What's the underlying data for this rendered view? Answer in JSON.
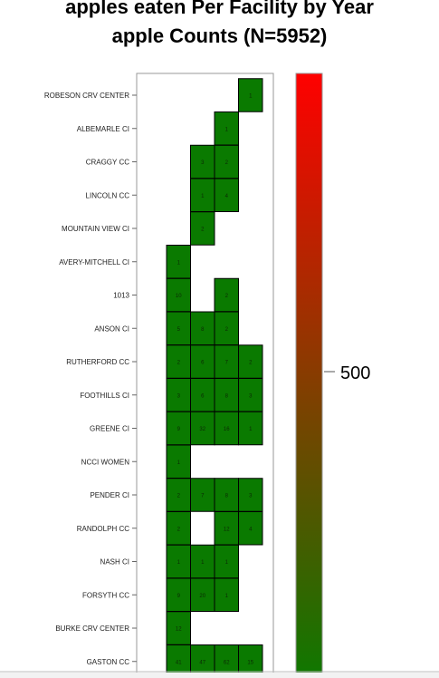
{
  "chart_data": {
    "type": "heatmap",
    "title": "apples eaten Per Facility by Year",
    "subtitle": "apple Counts (N=5952)",
    "rows": [
      "ROBESON CRV CENTER",
      "ALBEMARLE CI",
      "CRAGGY CC",
      "LINCOLN CC",
      "MOUNTAIN VIEW CI",
      "AVERY-MITCHELL CI",
      "1013",
      "ANSON CI",
      "RUTHERFORD CC",
      "FOOTHILLS CI",
      "GREENE CI",
      "NCCI WOMEN",
      "PENDER CI",
      "RANDOLPH CC",
      "NASH CI",
      "FORSYTH CC",
      "BURKE CRV CENTER",
      "GASTON CC"
    ],
    "columns": 4,
    "cells": [
      {
        "row": 0,
        "col": 3,
        "value": 1
      },
      {
        "row": 1,
        "col": 2,
        "value": 1
      },
      {
        "row": 2,
        "col": 1,
        "value": 3
      },
      {
        "row": 2,
        "col": 2,
        "value": 2
      },
      {
        "row": 3,
        "col": 1,
        "value": 1
      },
      {
        "row": 3,
        "col": 2,
        "value": 4
      },
      {
        "row": 4,
        "col": 1,
        "value": 2
      },
      {
        "row": 5,
        "col": 0,
        "value": 1
      },
      {
        "row": 6,
        "col": 0,
        "value": 10
      },
      {
        "row": 6,
        "col": 2,
        "value": 2
      },
      {
        "row": 7,
        "col": 0,
        "value": 5
      },
      {
        "row": 7,
        "col": 1,
        "value": 8
      },
      {
        "row": 7,
        "col": 2,
        "value": 2
      },
      {
        "row": 8,
        "col": 0,
        "value": 2
      },
      {
        "row": 8,
        "col": 1,
        "value": 6
      },
      {
        "row": 8,
        "col": 2,
        "value": 7
      },
      {
        "row": 8,
        "col": 3,
        "value": 2
      },
      {
        "row": 9,
        "col": 0,
        "value": 3
      },
      {
        "row": 9,
        "col": 1,
        "value": 6
      },
      {
        "row": 9,
        "col": 2,
        "value": 8
      },
      {
        "row": 9,
        "col": 3,
        "value": 3
      },
      {
        "row": 10,
        "col": 0,
        "value": 9
      },
      {
        "row": 10,
        "col": 1,
        "value": 32
      },
      {
        "row": 10,
        "col": 2,
        "value": 16
      },
      {
        "row": 10,
        "col": 3,
        "value": 1
      },
      {
        "row": 11,
        "col": 0,
        "value": 1
      },
      {
        "row": 12,
        "col": 0,
        "value": 2
      },
      {
        "row": 12,
        "col": 1,
        "value": 7
      },
      {
        "row": 12,
        "col": 2,
        "value": 8
      },
      {
        "row": 12,
        "col": 3,
        "value": 3
      },
      {
        "row": 13,
        "col": 0,
        "value": 2
      },
      {
        "row": 13,
        "col": 2,
        "value": 12
      },
      {
        "row": 13,
        "col": 3,
        "value": 4
      },
      {
        "row": 14,
        "col": 0,
        "value": 1
      },
      {
        "row": 14,
        "col": 1,
        "value": 1
      },
      {
        "row": 14,
        "col": 2,
        "value": 1
      },
      {
        "row": 15,
        "col": 0,
        "value": 9
      },
      {
        "row": 15,
        "col": 1,
        "value": 20
      },
      {
        "row": 15,
        "col": 2,
        "value": 1
      },
      {
        "row": 16,
        "col": 0,
        "value": 12
      },
      {
        "row": 17,
        "col": 0,
        "value": 41
      },
      {
        "row": 17,
        "col": 1,
        "value": 47
      },
      {
        "row": 17,
        "col": 2,
        "value": 62
      },
      {
        "row": 17,
        "col": 3,
        "value": 15
      }
    ],
    "colorbar": {
      "tick_label": "500",
      "tick_value": 500,
      "color_low": "#0a7a00",
      "color_high": "#ff0000"
    },
    "colors": {
      "cell_fill": "#0a7a00",
      "cell_stroke": "#000000",
      "frame": "#999999"
    }
  }
}
